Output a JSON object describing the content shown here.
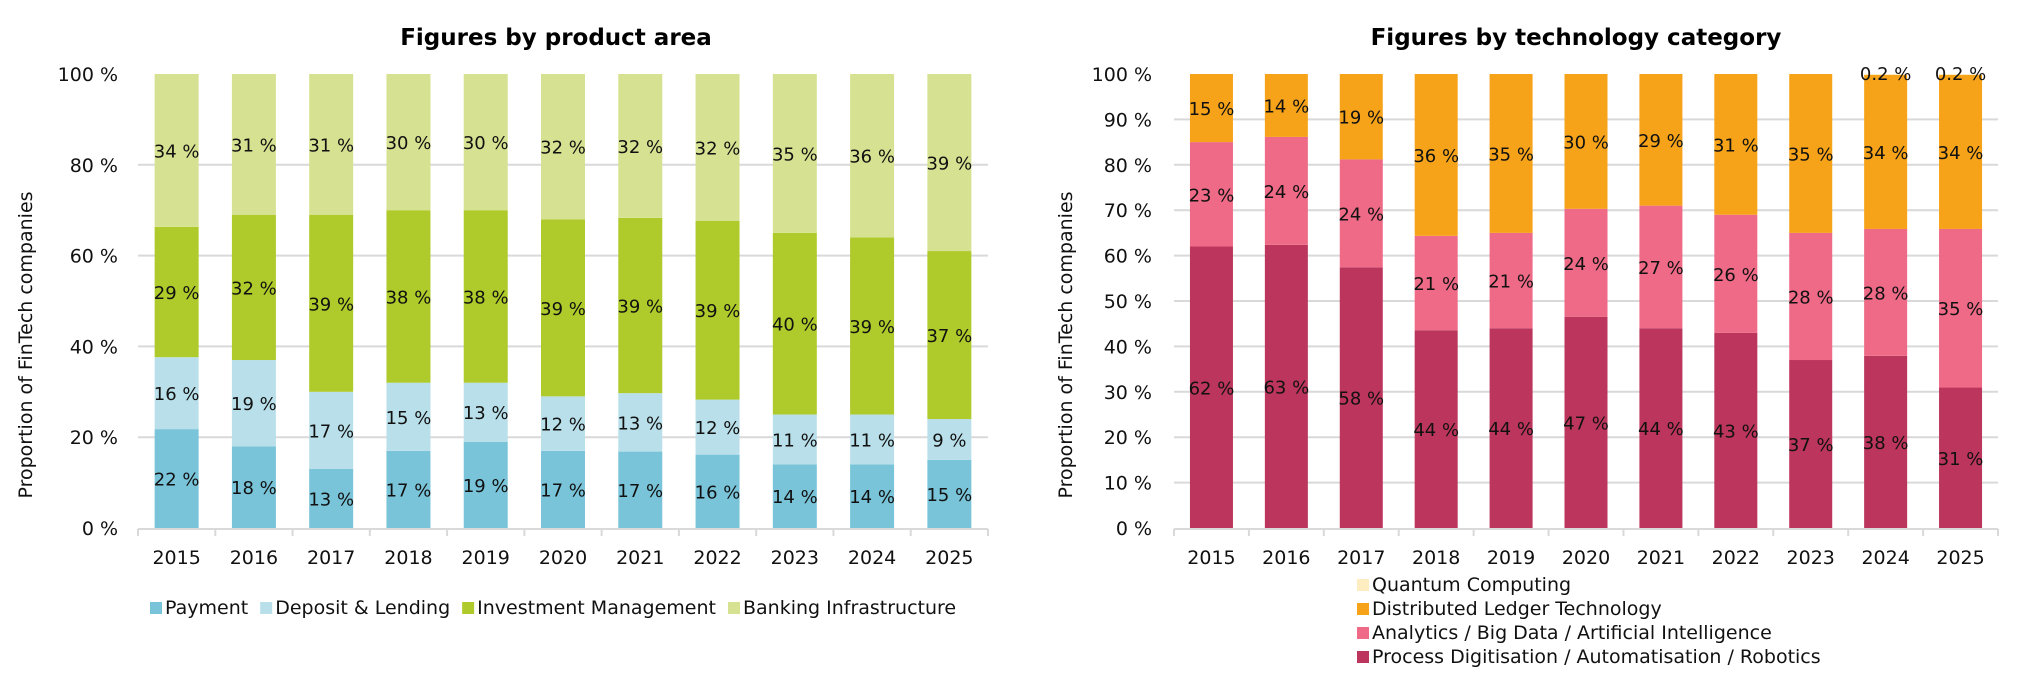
{
  "chart_data": [
    {
      "type": "bar",
      "stacked": true,
      "title": "Figures by product area",
      "xlabel": "",
      "ylabel": "Proportion of FinTech companies",
      "ylim": [
        0,
        100
      ],
      "yticks": [
        0,
        20,
        40,
        60,
        80,
        100
      ],
      "ytick_labels": [
        "0 %",
        "20 %",
        "40 %",
        "60 %",
        "80 %",
        "100 %"
      ],
      "grid": true,
      "legend_position": "bottom",
      "categories": [
        "2015",
        "2016",
        "2017",
        "2018",
        "2019",
        "2020",
        "2021",
        "2022",
        "2023",
        "2024",
        "2025"
      ],
      "series": [
        {
          "name": "Payment",
          "color": "#79c4d9",
          "values": [
            22,
            18,
            13,
            17,
            19,
            17,
            17,
            16,
            14,
            14,
            15
          ]
        },
        {
          "name": "Deposit & Lending",
          "color": "#b9e0ea",
          "values": [
            16,
            19,
            17,
            15,
            13,
            12,
            13,
            12,
            11,
            11,
            9
          ]
        },
        {
          "name": "Investment Management",
          "color": "#afca2b",
          "values": [
            29,
            32,
            39,
            38,
            38,
            39,
            39,
            39,
            40,
            39,
            37
          ]
        },
        {
          "name": "Banking Infrastructure",
          "color": "#d6e291",
          "values": [
            34,
            31,
            31,
            30,
            30,
            32,
            32,
            32,
            35,
            36,
            39
          ]
        }
      ],
      "data_labels": [
        [
          "22 %",
          "18 %",
          "13 %",
          "17 %",
          "19 %",
          "17 %",
          "17 %",
          "16 %",
          "14 %",
          "14 %",
          "15 %"
        ],
        [
          "16 %",
          "19 %",
          "17 %",
          "15 %",
          "13 %",
          "12 %",
          "13 %",
          "12 %",
          "11 %",
          "11 %",
          "9 %"
        ],
        [
          "29 %",
          "32 %",
          "39 %",
          "38 %",
          "38 %",
          "39 %",
          "39 %",
          "39 %",
          "40 %",
          "39 %",
          "37 %"
        ],
        [
          "34 %",
          "31 %",
          "31 %",
          "30 %",
          "30 %",
          "32 %",
          "32 %",
          "32 %",
          "35 %",
          "36 %",
          "39 %"
        ]
      ]
    },
    {
      "type": "bar",
      "stacked": true,
      "title": "Figures by technology category",
      "xlabel": "",
      "ylabel": "Proportion of FinTech companies",
      "ylim": [
        0,
        100
      ],
      "yticks": [
        0,
        10,
        20,
        30,
        40,
        50,
        60,
        70,
        80,
        90,
        100
      ],
      "ytick_labels": [
        "0 %",
        "10 %",
        "20 %",
        "30 %",
        "40 %",
        "50 %",
        "60 %",
        "70 %",
        "80 %",
        "90 %",
        "100 %"
      ],
      "grid": true,
      "legend_position": "bottom",
      "categories": [
        "2015",
        "2016",
        "2017",
        "2018",
        "2019",
        "2020",
        "2021",
        "2022",
        "2023",
        "2024",
        "2025"
      ],
      "series": [
        {
          "name": "Process Digitisation / Automatisation / Robotics",
          "color": "#bb355c",
          "values": [
            62,
            63,
            58,
            44,
            44,
            47,
            44,
            43,
            37,
            38,
            31
          ]
        },
        {
          "name": "Analytics / Big Data / Artificial Intelligence",
          "color": "#ee6a87",
          "values": [
            23,
            24,
            24,
            21,
            21,
            24,
            27,
            26,
            28,
            28,
            35
          ]
        },
        {
          "name": "Distributed Ledger Technology",
          "color": "#f6a31a",
          "values": [
            15,
            14,
            19,
            36,
            35,
            30,
            29,
            31,
            35,
            34,
            34
          ]
        },
        {
          "name": "Quantum Computing",
          "color": "#fdedc0",
          "values": [
            0,
            0,
            0,
            0,
            0,
            0,
            0,
            0,
            0,
            0.2,
            0.2
          ]
        }
      ],
      "data_labels": [
        [
          "62 %",
          "63 %",
          "58 %",
          "44 %",
          "44 %",
          "47 %",
          "44 %",
          "43 %",
          "37 %",
          "38 %",
          "31 %"
        ],
        [
          "23 %",
          "24 %",
          "24 %",
          "21 %",
          "21 %",
          "24 %",
          "27 %",
          "26 %",
          "28 %",
          "28 %",
          "35 %"
        ],
        [
          "15 %",
          "14 %",
          "19 %",
          "36 %",
          "35 %",
          "30 %",
          "29 %",
          "31 %",
          "35 %",
          "34 %",
          "34 %"
        ],
        [
          "",
          "",
          "",
          "",
          "",
          "",
          "",
          "",
          "",
          "0.2 %",
          "0.2 %"
        ]
      ],
      "legend_order": [
        "Quantum Computing",
        "Distributed Ledger Technology",
        "Analytics / Big Data / Artificial Intelligence",
        "Process Digitisation / Automatisation / Robotics"
      ]
    }
  ]
}
